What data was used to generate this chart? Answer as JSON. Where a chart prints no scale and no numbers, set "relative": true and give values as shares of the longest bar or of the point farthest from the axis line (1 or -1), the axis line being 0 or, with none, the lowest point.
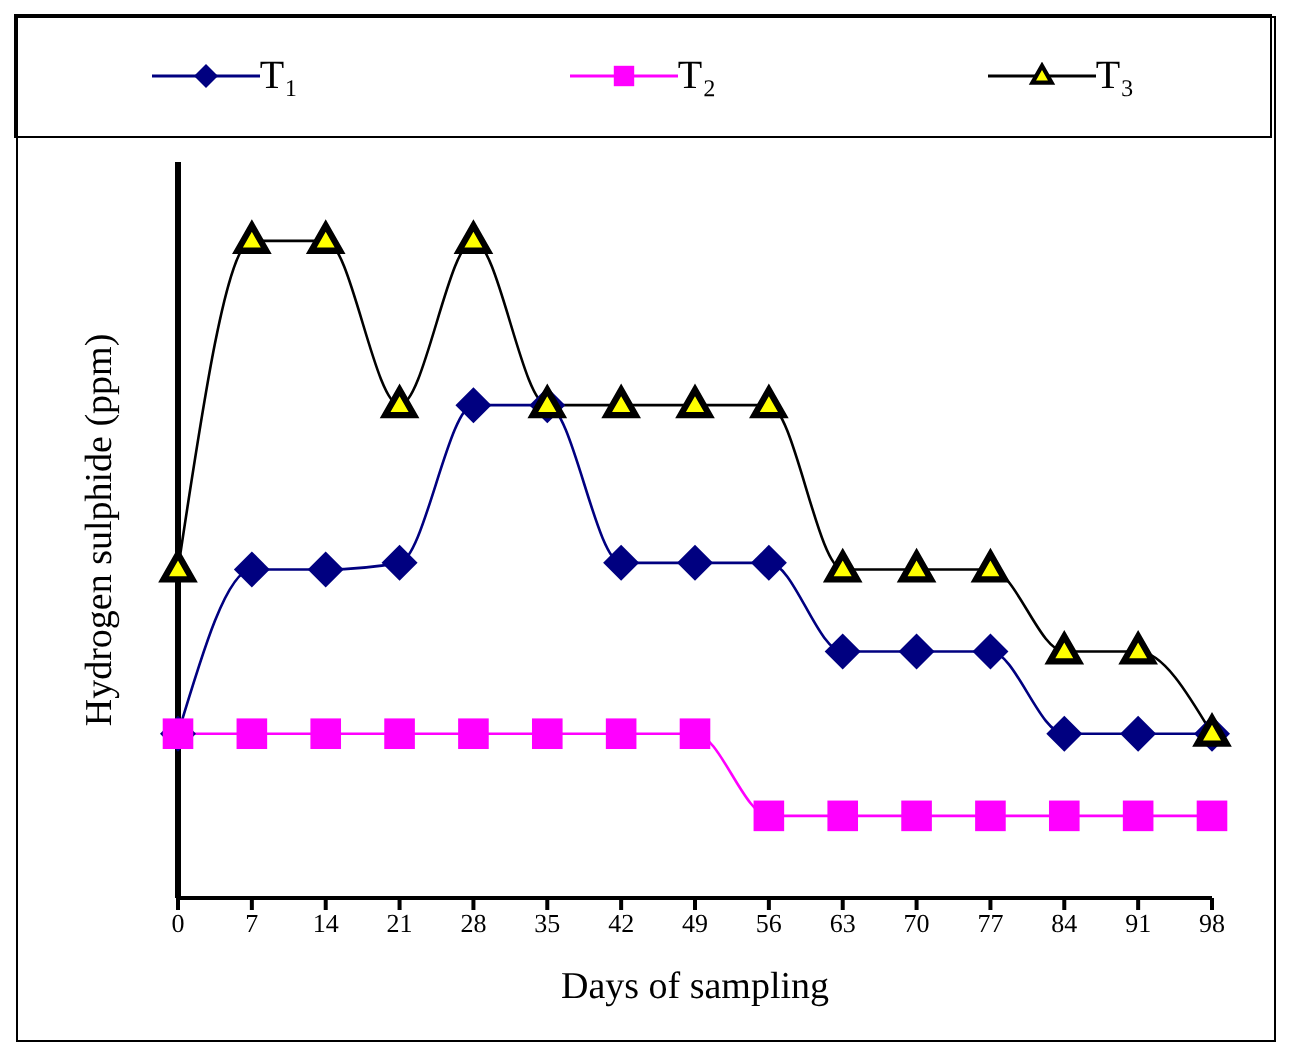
{
  "chart_data": {
    "type": "line",
    "relative": true,
    "xlabel": "Days of sampling",
    "ylabel": "Hydrogen sulphide (ppm)",
    "legend": "top",
    "grid": false,
    "categories": [
      "0",
      "7",
      "14",
      "21",
      "28",
      "35",
      "42",
      "49",
      "56",
      "63",
      "70",
      "77",
      "84",
      "91",
      "98"
    ],
    "series": [
      {
        "name": "T₁",
        "color": "#000080",
        "marker": "diamond",
        "values": [
          0.25,
          0.5,
          0.5,
          0.51,
          0.75,
          0.75,
          0.51,
          0.51,
          0.51,
          0.375,
          0.375,
          0.375,
          0.25,
          0.25,
          0.25
        ]
      },
      {
        "name": "T₂",
        "color": "#ff00ff",
        "marker": "square",
        "values": [
          0.25,
          0.25,
          0.25,
          0.25,
          0.25,
          0.25,
          0.25,
          0.25,
          0.125,
          0.125,
          0.125,
          0.125,
          0.125,
          0.125,
          0.125
        ]
      },
      {
        "name": "T₃",
        "color": "#000000",
        "marker": "triangle",
        "values": [
          0.5,
          1,
          1,
          0.75,
          1,
          0.75,
          0.75,
          0.75,
          0.75,
          0.5,
          0.5,
          0.5,
          0.375,
          0.375,
          0.25
        ]
      }
    ]
  }
}
